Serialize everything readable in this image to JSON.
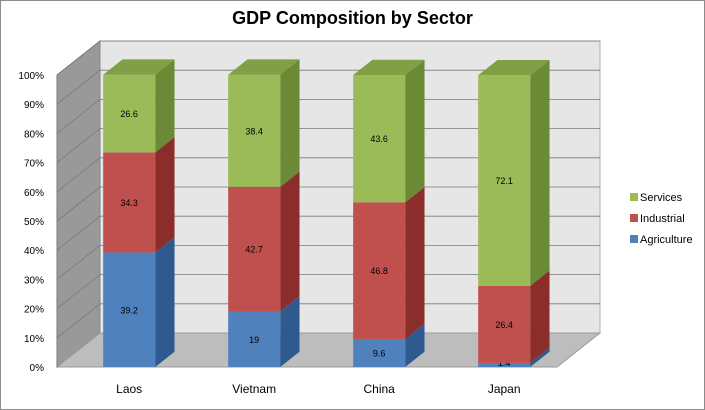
{
  "chart_data": {
    "type": "bar",
    "stacked": true,
    "percent_stacked": true,
    "three_d": true,
    "title": "GDP Composition by Sector",
    "categories": [
      "Laos",
      "Vietnam",
      "China",
      "Japan"
    ],
    "series": [
      {
        "name": "Agriculture",
        "values": [
          39.2,
          19,
          9.6,
          1.4
        ],
        "color": "#4f81bd",
        "side_color": "#2f5a8f",
        "top_color": "#3a6ca8"
      },
      {
        "name": "Industrial",
        "values": [
          34.3,
          42.7,
          46.8,
          26.4
        ],
        "color": "#c0504d",
        "side_color": "#8b2d2b",
        "top_color": "#a83c39"
      },
      {
        "name": "Services",
        "values": [
          26.6,
          38.4,
          43.6,
          72.1
        ],
        "color": "#9bbb59",
        "side_color": "#6b8a35",
        "top_color": "#7fa044"
      }
    ],
    "y_ticks": [
      "0%",
      "10%",
      "20%",
      "30%",
      "40%",
      "50%",
      "60%",
      "70%",
      "80%",
      "90%",
      "100%"
    ],
    "ylim": [
      0,
      100
    ],
    "grid": true,
    "legend_position": "right",
    "legend_order": [
      "Services",
      "Industrial",
      "Agriculture"
    ]
  }
}
